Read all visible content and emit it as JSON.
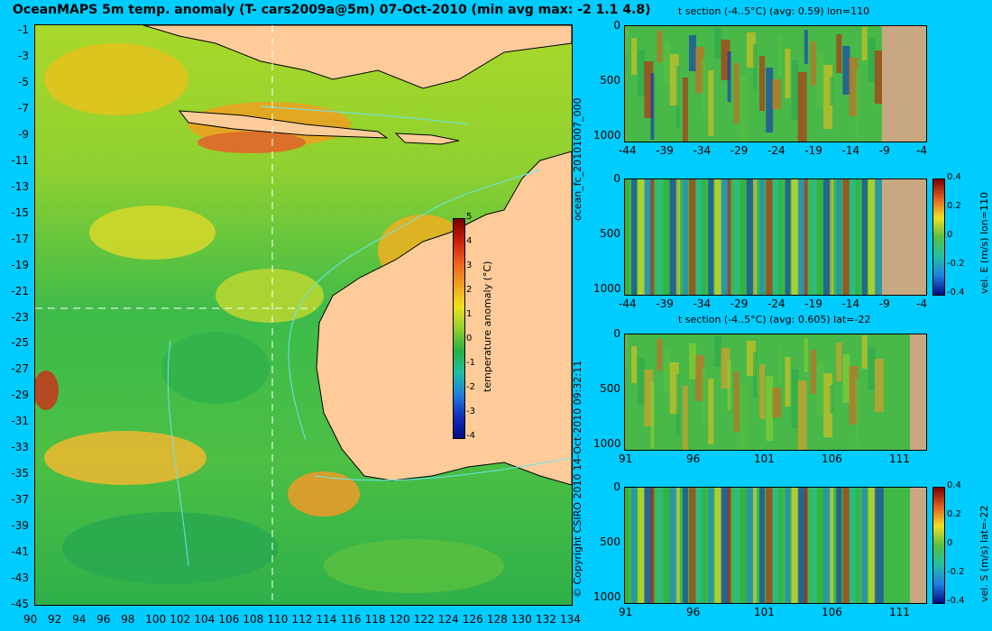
{
  "map": {
    "title": "OceanMAPS 5m temp. anomaly (T- cars2009a@5m) 07-Oct-2010 (min avg max: -2 1.1 4.8)",
    "y_ticks": [
      "-1",
      "-3",
      "-5",
      "-7",
      "-9",
      "-11",
      "-13",
      "-15",
      "-17",
      "-19",
      "-21",
      "-23",
      "-25",
      "-27",
      "-29",
      "-31",
      "-33",
      "-35",
      "-37",
      "-39",
      "-41",
      "-43",
      "-45"
    ],
    "x_ticks": [
      "90",
      "92",
      "94",
      "96",
      "98",
      "100",
      "102",
      "104",
      "106",
      "108",
      "110",
      "112",
      "114",
      "116",
      "118",
      "120",
      "122",
      "124",
      "126",
      "128",
      "130",
      "132",
      "134"
    ],
    "colorbar": {
      "label": "temperature anomaly (°C)",
      "ticks": [
        "5",
        "4",
        "3",
        "2",
        "1",
        "0",
        "-1",
        "-2",
        "-3",
        "-4"
      ]
    }
  },
  "side_text": {
    "run": "ocean_fc_20101007_000",
    "copyright": "© Copyright CSIRO 2010  14-Oct-2010 09:32:11"
  },
  "sections": [
    {
      "title": "t section (-4..5°C) (avg: 0.59) lon=110",
      "y_ticks": [
        "0",
        "500",
        "1000"
      ],
      "x_ticks": [
        "-44",
        "-39",
        "-34",
        "-29",
        "-24",
        "-19",
        "-14",
        "-9",
        "-4"
      ],
      "colorbar": null
    },
    {
      "title": "",
      "y_ticks": [
        "0",
        "500",
        "1000"
      ],
      "x_ticks": [
        "-44",
        "-39",
        "-34",
        "-29",
        "-24",
        "-19",
        "-14",
        "-9",
        "-4"
      ],
      "colorbar": {
        "label": "vel. E (m/s) lon=110",
        "ticks": [
          "0.4",
          "0.2",
          "0",
          "-0.2",
          "-0.4"
        ]
      }
    },
    {
      "title": "t section (-4..5°C) (avg: 0.605) lat=-22",
      "y_ticks": [
        "0",
        "500",
        "1000"
      ],
      "x_ticks": [
        "91",
        "96",
        "101",
        "106",
        "111"
      ],
      "colorbar": null
    },
    {
      "title": "",
      "y_ticks": [
        "0",
        "500",
        "1000"
      ],
      "x_ticks": [
        "91",
        "96",
        "101",
        "106",
        "111"
      ],
      "colorbar": {
        "label": "vel. S (m/s) lat=-22",
        "ticks": [
          "0.4",
          "0.2",
          "0",
          "-0.2",
          "-0.4"
        ]
      }
    }
  ],
  "colors": {
    "background": "#00ccff",
    "land": "#ffcc99",
    "section_land": "#c8a882",
    "contour": "#66e6f2"
  }
}
